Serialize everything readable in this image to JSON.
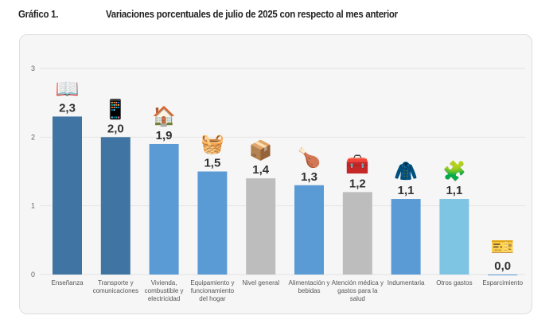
{
  "header": {
    "figure_label": "Gráfico 1.",
    "title": "Variaciones porcentuales de julio de 2025 con respecto al mes anterior"
  },
  "chart_data": {
    "type": "bar",
    "title": "Variaciones porcentuales de julio de 2025 con respecto al mes anterior",
    "xlabel": "",
    "ylabel": "",
    "ylim": [
      0,
      3
    ],
    "yticks": [
      0,
      1,
      2,
      3
    ],
    "grid": true,
    "decimal_separator": ",",
    "categories": [
      "Enseñanza",
      "Transporte y comunicaciones",
      "Vivienda, combustible y electricidad",
      "Equipamiento y funcionamiento del hogar",
      "Nivel general",
      "Alimentación y bebidas",
      "Atención médica y gastos para la salud",
      "Indumentaria",
      "Otros gastos",
      "Esparcimiento"
    ],
    "category_lines": [
      [
        "Enseñanza"
      ],
      [
        "Transporte y",
        "comunicaciones"
      ],
      [
        "Vivienda,",
        "combustible y",
        "electricidad"
      ],
      [
        "Equipamiento y",
        "funcionamiento",
        "del hogar"
      ],
      [
        "Nivel general"
      ],
      [
        "Alimentación y",
        "bebidas"
      ],
      [
        "Atención médica y",
        "gastos para la",
        "salud"
      ],
      [
        "Indumentaria"
      ],
      [
        "Otros gastos"
      ],
      [
        "Esparcimiento"
      ]
    ],
    "values": [
      2.3,
      2.0,
      1.9,
      1.5,
      1.4,
      1.3,
      1.2,
      1.1,
      1.1,
      0.0
    ],
    "labels": [
      "2,3",
      "2,0",
      "1,9",
      "1,5",
      "1,4",
      "1,3",
      "1,2",
      "1,1",
      "1,1",
      "0,0"
    ],
    "colors": [
      "#3f74a3",
      "#3f74a3",
      "#5b9bd5",
      "#5b9bd5",
      "#bdbdbd",
      "#5b9bd5",
      "#bdbdbd",
      "#5b9bd5",
      "#7ec4e3",
      "#5b9bd5"
    ],
    "icons": [
      "book-pencil-icon",
      "bus-phone-icon",
      "house-bulb-icon",
      "washing-machine-icon",
      "box-goods-icon",
      "food-drink-icon",
      "medical-kit-icon",
      "clothes-shoe-icon",
      "puzzle-money-icon",
      "music-ticket-icon"
    ]
  }
}
